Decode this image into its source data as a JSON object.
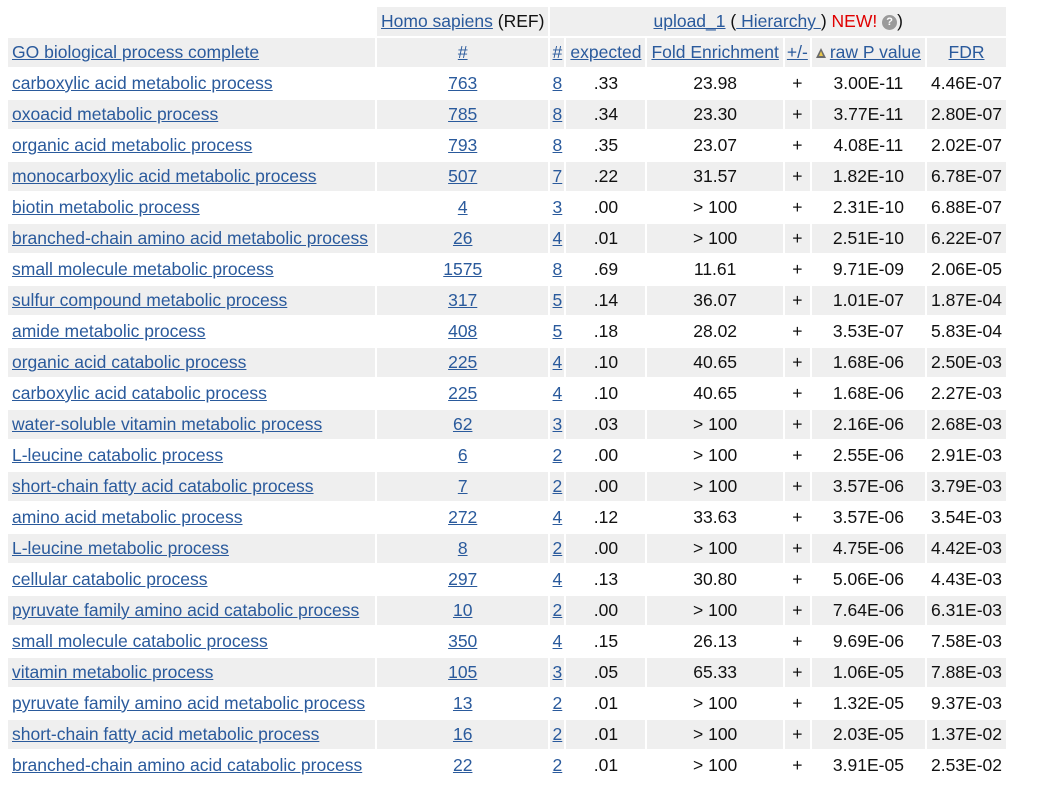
{
  "header": {
    "ref_label": "Homo sapiens",
    "ref_suffix": " (REF)",
    "upload_label": "upload_1",
    "paren_open": " (",
    "hierarchy_label": " Hierarchy ",
    "paren_close": ")",
    "new_label": " NEW!",
    "help_glyph": "?",
    "close_paren": ")"
  },
  "columns": {
    "process": "GO biological process complete",
    "ref_count": "#",
    "count": "#",
    "expected": "expected",
    "fold": "Fold Enrichment",
    "sign": "+/-",
    "pvalue": "raw P value",
    "fdr": "FDR"
  },
  "icons": {
    "help": "help-circle-icon",
    "sort": "sort-triangle-icon"
  },
  "colors": {
    "link": "#2a5a9c",
    "new": "#e00000",
    "stripe": "#efefef"
  },
  "rows": [
    {
      "process": "carboxylic acid metabolic process",
      "ref": "763",
      "count": "8",
      "expected": ".33",
      "fold": "23.98",
      "sign": "+",
      "p": "3.00E-11",
      "fdr": "4.46E-07"
    },
    {
      "process": "oxoacid metabolic process",
      "ref": "785",
      "count": "8",
      "expected": ".34",
      "fold": "23.30",
      "sign": "+",
      "p": "3.77E-11",
      "fdr": "2.80E-07"
    },
    {
      "process": "organic acid metabolic process",
      "ref": "793",
      "count": "8",
      "expected": ".35",
      "fold": "23.07",
      "sign": "+",
      "p": "4.08E-11",
      "fdr": "2.02E-07"
    },
    {
      "process": "monocarboxylic acid metabolic process",
      "ref": "507",
      "count": "7",
      "expected": ".22",
      "fold": "31.57",
      "sign": "+",
      "p": "1.82E-10",
      "fdr": "6.78E-07"
    },
    {
      "process": "biotin metabolic process",
      "ref": "4",
      "count": "3",
      "expected": ".00",
      "fold": "> 100",
      "sign": "+",
      "p": "2.31E-10",
      "fdr": "6.88E-07"
    },
    {
      "process": "branched-chain amino acid metabolic process",
      "ref": "26",
      "count": "4",
      "expected": ".01",
      "fold": "> 100",
      "sign": "+",
      "p": "2.51E-10",
      "fdr": "6.22E-07"
    },
    {
      "process": "small molecule metabolic process",
      "ref": "1575",
      "count": "8",
      "expected": ".69",
      "fold": "11.61",
      "sign": "+",
      "p": "9.71E-09",
      "fdr": "2.06E-05"
    },
    {
      "process": "sulfur compound metabolic process",
      "ref": "317",
      "count": "5",
      "expected": ".14",
      "fold": "36.07",
      "sign": "+",
      "p": "1.01E-07",
      "fdr": "1.87E-04"
    },
    {
      "process": "amide metabolic process",
      "ref": "408",
      "count": "5",
      "expected": ".18",
      "fold": "28.02",
      "sign": "+",
      "p": "3.53E-07",
      "fdr": "5.83E-04"
    },
    {
      "process": "organic acid catabolic process",
      "ref": "225",
      "count": "4",
      "expected": ".10",
      "fold": "40.65",
      "sign": "+",
      "p": "1.68E-06",
      "fdr": "2.50E-03"
    },
    {
      "process": "carboxylic acid catabolic process",
      "ref": "225",
      "count": "4",
      "expected": ".10",
      "fold": "40.65",
      "sign": "+",
      "p": "1.68E-06",
      "fdr": "2.27E-03"
    },
    {
      "process": "water-soluble vitamin metabolic process",
      "ref": "62",
      "count": "3",
      "expected": ".03",
      "fold": "> 100",
      "sign": "+",
      "p": "2.16E-06",
      "fdr": "2.68E-03"
    },
    {
      "process": "L-leucine catabolic process",
      "ref": "6",
      "count": "2",
      "expected": ".00",
      "fold": "> 100",
      "sign": "+",
      "p": "2.55E-06",
      "fdr": "2.91E-03"
    },
    {
      "process": "short-chain fatty acid catabolic process",
      "ref": "7",
      "count": "2",
      "expected": ".00",
      "fold": "> 100",
      "sign": "+",
      "p": "3.57E-06",
      "fdr": "3.79E-03"
    },
    {
      "process": "amino acid metabolic process",
      "ref": "272",
      "count": "4",
      "expected": ".12",
      "fold": "33.63",
      "sign": "+",
      "p": "3.57E-06",
      "fdr": "3.54E-03"
    },
    {
      "process": "L-leucine metabolic process",
      "ref": "8",
      "count": "2",
      "expected": ".00",
      "fold": "> 100",
      "sign": "+",
      "p": "4.75E-06",
      "fdr": "4.42E-03"
    },
    {
      "process": "cellular catabolic process",
      "ref": "297",
      "count": "4",
      "expected": ".13",
      "fold": "30.80",
      "sign": "+",
      "p": "5.06E-06",
      "fdr": "4.43E-03"
    },
    {
      "process": "pyruvate family amino acid catabolic process",
      "ref": "10",
      "count": "2",
      "expected": ".00",
      "fold": "> 100",
      "sign": "+",
      "p": "7.64E-06",
      "fdr": "6.31E-03"
    },
    {
      "process": "small molecule catabolic process",
      "ref": "350",
      "count": "4",
      "expected": ".15",
      "fold": "26.13",
      "sign": "+",
      "p": "9.69E-06",
      "fdr": "7.58E-03"
    },
    {
      "process": "vitamin metabolic process",
      "ref": "105",
      "count": "3",
      "expected": ".05",
      "fold": "65.33",
      "sign": "+",
      "p": "1.06E-05",
      "fdr": "7.88E-03"
    },
    {
      "process": "pyruvate family amino acid metabolic process",
      "ref": "13",
      "count": "2",
      "expected": ".01",
      "fold": "> 100",
      "sign": "+",
      "p": "1.32E-05",
      "fdr": "9.37E-03"
    },
    {
      "process": "short-chain fatty acid metabolic process",
      "ref": "16",
      "count": "2",
      "expected": ".01",
      "fold": "> 100",
      "sign": "+",
      "p": "2.03E-05",
      "fdr": "1.37E-02"
    },
    {
      "process": "branched-chain amino acid catabolic process",
      "ref": "22",
      "count": "2",
      "expected": ".01",
      "fold": "> 100",
      "sign": "+",
      "p": "3.91E-05",
      "fdr": "2.53E-02"
    }
  ]
}
